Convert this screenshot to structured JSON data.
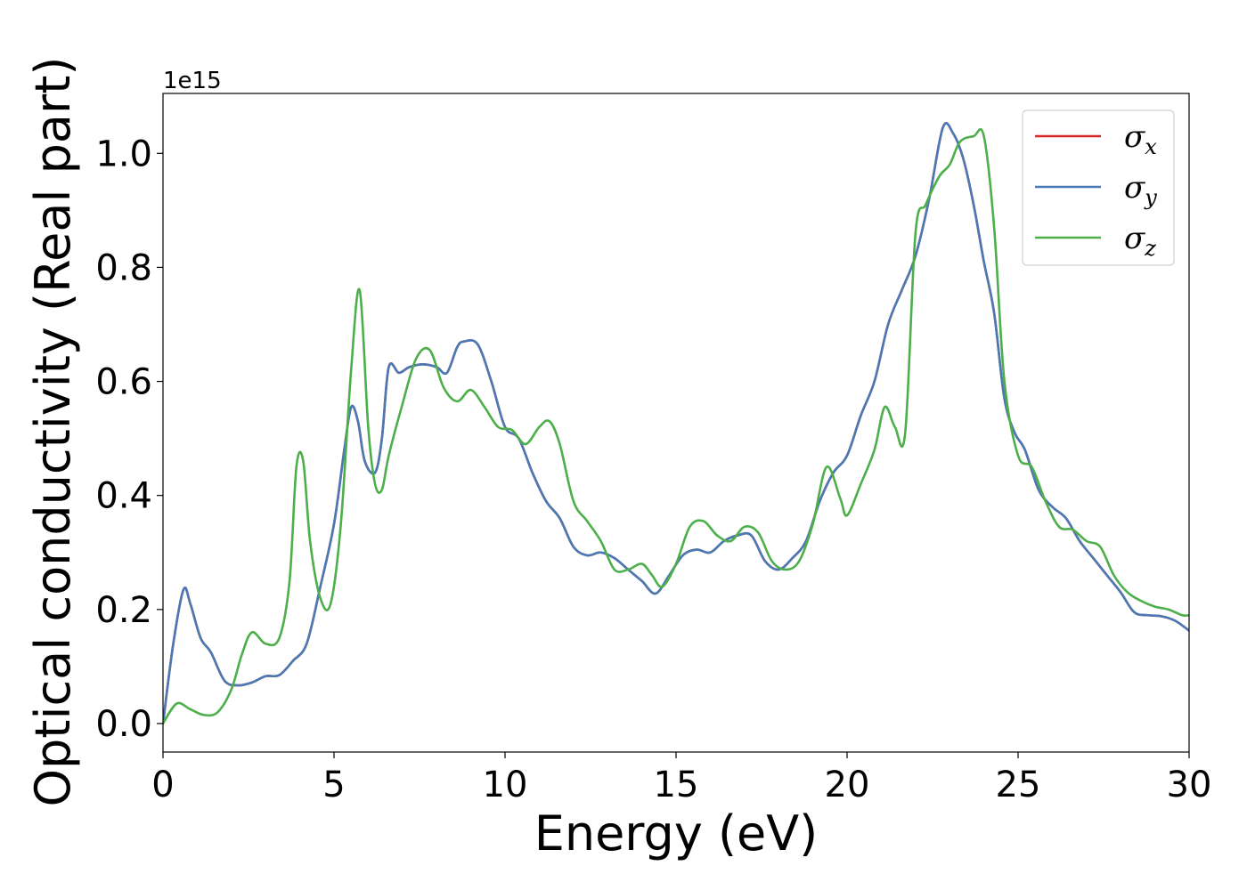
{
  "chart_data": {
    "type": "line",
    "xlabel": "Energy (eV)",
    "ylabel": "Optical conductivity (Real part)",
    "y_offset_label": "1e15",
    "xlim": [
      0,
      30
    ],
    "ylim": [
      -0.05,
      1.105
    ],
    "x_ticks": [
      0,
      5,
      10,
      15,
      20,
      25,
      30
    ],
    "x_tick_labels": [
      "0",
      "5",
      "10",
      "15",
      "20",
      "25",
      "30"
    ],
    "y_ticks": [
      0.0,
      0.2,
      0.4,
      0.6,
      0.8,
      1.0
    ],
    "y_tick_labels": [
      "0.0",
      "0.2",
      "0.4",
      "0.6",
      "0.8",
      "1.0"
    ],
    "grid": false,
    "legend_position": "top-right",
    "series": [
      {
        "name": "σx",
        "symbol": "σ",
        "subscript": "x",
        "color": "#d62728",
        "x": [
          0,
          0.3,
          0.6,
          0.8,
          1.1,
          1.4,
          1.8,
          2.2,
          2.6,
          3.0,
          3.4,
          3.8,
          4.2,
          4.6,
          5.0,
          5.3,
          5.5,
          5.7,
          5.9,
          6.2,
          6.4,
          6.6,
          6.9,
          7.2,
          7.6,
          8.0,
          8.3,
          8.6,
          8.8,
          9.2,
          9.6,
          10.0,
          10.4,
          10.8,
          11.2,
          11.6,
          12.0,
          12.4,
          12.8,
          13.2,
          13.6,
          14.0,
          14.4,
          14.8,
          15.2,
          15.6,
          16.0,
          16.4,
          16.8,
          17.2,
          17.6,
          18.0,
          18.4,
          18.8,
          19.2,
          19.6,
          20.0,
          20.4,
          20.8,
          21.2,
          21.6,
          22.0,
          22.4,
          22.8,
          23.1,
          23.4,
          23.7,
          24.0,
          24.3,
          24.6,
          24.9,
          25.2,
          25.6,
          26.0,
          26.4,
          26.8,
          27.2,
          27.6,
          28.0,
          28.4,
          28.8,
          29.2,
          29.6,
          30.0
        ],
        "y": [
          0.0,
          0.14,
          0.235,
          0.21,
          0.15,
          0.125,
          0.075,
          0.067,
          0.072,
          0.083,
          0.085,
          0.11,
          0.14,
          0.24,
          0.35,
          0.48,
          0.555,
          0.53,
          0.46,
          0.44,
          0.5,
          0.625,
          0.615,
          0.625,
          0.63,
          0.625,
          0.615,
          0.66,
          0.67,
          0.665,
          0.6,
          0.52,
          0.5,
          0.44,
          0.39,
          0.36,
          0.31,
          0.295,
          0.3,
          0.29,
          0.27,
          0.25,
          0.228,
          0.26,
          0.295,
          0.305,
          0.3,
          0.32,
          0.33,
          0.33,
          0.285,
          0.27,
          0.29,
          0.32,
          0.39,
          0.44,
          0.47,
          0.54,
          0.6,
          0.7,
          0.76,
          0.82,
          0.92,
          1.045,
          1.035,
          0.99,
          0.91,
          0.81,
          0.72,
          0.57,
          0.51,
          0.48,
          0.41,
          0.38,
          0.36,
          0.32,
          0.29,
          0.26,
          0.23,
          0.195,
          0.19,
          0.188,
          0.18,
          0.163
        ]
      },
      {
        "name": "σy",
        "symbol": "σ",
        "subscript": "y",
        "color": "#4a7ab5",
        "x": [
          0,
          0.3,
          0.6,
          0.8,
          1.1,
          1.4,
          1.8,
          2.2,
          2.6,
          3.0,
          3.4,
          3.8,
          4.2,
          4.6,
          5.0,
          5.3,
          5.5,
          5.7,
          5.9,
          6.2,
          6.4,
          6.6,
          6.9,
          7.2,
          7.6,
          8.0,
          8.3,
          8.6,
          8.8,
          9.2,
          9.6,
          10.0,
          10.4,
          10.8,
          11.2,
          11.6,
          12.0,
          12.4,
          12.8,
          13.2,
          13.6,
          14.0,
          14.4,
          14.8,
          15.2,
          15.6,
          16.0,
          16.4,
          16.8,
          17.2,
          17.6,
          18.0,
          18.4,
          18.8,
          19.2,
          19.6,
          20.0,
          20.4,
          20.8,
          21.2,
          21.6,
          22.0,
          22.4,
          22.8,
          23.1,
          23.4,
          23.7,
          24.0,
          24.3,
          24.6,
          24.9,
          25.2,
          25.6,
          26.0,
          26.4,
          26.8,
          27.2,
          27.6,
          28.0,
          28.4,
          28.8,
          29.2,
          29.6,
          30.0
        ],
        "y": [
          0.0,
          0.14,
          0.235,
          0.21,
          0.15,
          0.125,
          0.075,
          0.067,
          0.072,
          0.083,
          0.085,
          0.11,
          0.14,
          0.24,
          0.35,
          0.48,
          0.555,
          0.53,
          0.46,
          0.44,
          0.5,
          0.625,
          0.615,
          0.625,
          0.63,
          0.625,
          0.615,
          0.66,
          0.67,
          0.665,
          0.6,
          0.52,
          0.5,
          0.44,
          0.39,
          0.36,
          0.31,
          0.295,
          0.3,
          0.29,
          0.27,
          0.25,
          0.228,
          0.26,
          0.295,
          0.305,
          0.3,
          0.32,
          0.33,
          0.33,
          0.285,
          0.27,
          0.29,
          0.32,
          0.39,
          0.44,
          0.47,
          0.54,
          0.6,
          0.7,
          0.76,
          0.82,
          0.92,
          1.045,
          1.035,
          0.99,
          0.91,
          0.81,
          0.72,
          0.57,
          0.51,
          0.48,
          0.41,
          0.38,
          0.36,
          0.32,
          0.29,
          0.26,
          0.23,
          0.195,
          0.19,
          0.188,
          0.18,
          0.163
        ]
      },
      {
        "name": "σz",
        "symbol": "σ",
        "subscript": "z",
        "color": "#4daf4a",
        "x": [
          0,
          0.4,
          0.8,
          1.2,
          1.6,
          2.0,
          2.3,
          2.6,
          3.0,
          3.4,
          3.7,
          3.9,
          4.1,
          4.3,
          4.6,
          4.9,
          5.2,
          5.5,
          5.75,
          6.0,
          6.2,
          6.4,
          6.6,
          7.0,
          7.4,
          7.8,
          8.2,
          8.6,
          9.0,
          9.4,
          9.8,
          10.2,
          10.6,
          11.0,
          11.3,
          11.6,
          12.0,
          12.4,
          12.8,
          13.2,
          13.6,
          14.0,
          14.3,
          14.6,
          15.0,
          15.4,
          15.8,
          16.2,
          16.6,
          17.0,
          17.4,
          17.8,
          18.2,
          18.6,
          19.0,
          19.4,
          19.8,
          20.0,
          20.4,
          20.8,
          21.1,
          21.4,
          21.7,
          22.0,
          22.3,
          22.7,
          23.0,
          23.3,
          23.7,
          24.0,
          24.3,
          24.6,
          25.0,
          25.4,
          25.8,
          26.2,
          26.6,
          27.0,
          27.4,
          27.8,
          28.2,
          28.6,
          29.0,
          29.4,
          29.8,
          30.0
        ],
        "y": [
          0.0,
          0.035,
          0.025,
          0.015,
          0.02,
          0.06,
          0.12,
          0.16,
          0.14,
          0.15,
          0.25,
          0.45,
          0.46,
          0.32,
          0.22,
          0.21,
          0.35,
          0.62,
          0.76,
          0.52,
          0.42,
          0.41,
          0.47,
          0.56,
          0.64,
          0.655,
          0.59,
          0.565,
          0.585,
          0.555,
          0.52,
          0.515,
          0.49,
          0.52,
          0.53,
          0.49,
          0.39,
          0.355,
          0.32,
          0.27,
          0.27,
          0.28,
          0.26,
          0.24,
          0.28,
          0.345,
          0.355,
          0.33,
          0.32,
          0.345,
          0.335,
          0.285,
          0.27,
          0.285,
          0.35,
          0.45,
          0.395,
          0.365,
          0.42,
          0.48,
          0.555,
          0.52,
          0.51,
          0.86,
          0.91,
          0.96,
          0.98,
          1.02,
          1.03,
          1.03,
          0.87,
          0.6,
          0.47,
          0.45,
          0.39,
          0.345,
          0.34,
          0.32,
          0.31,
          0.26,
          0.23,
          0.215,
          0.205,
          0.2,
          0.19,
          0.19
        ]
      }
    ]
  }
}
